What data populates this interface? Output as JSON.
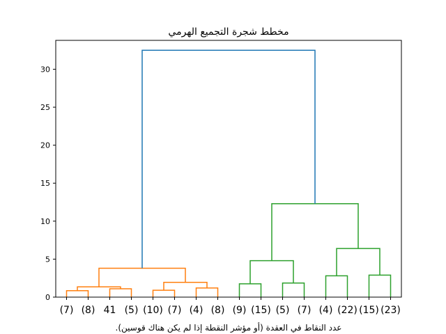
{
  "chart_data": {
    "type": "dendrogram",
    "title": "مخطط شجرة التجميع الهرمي",
    "xlabel": "عدد النقاط في العقدة (أو مؤشر النقطة إذا لم يكن هناك قوسين).",
    "ylabel": "",
    "ylim": [
      0,
      33.8
    ],
    "yticks": [
      0,
      5,
      10,
      15,
      20,
      25,
      30
    ],
    "grid": false,
    "leaf_labels": [
      "(7)",
      "(8)",
      "41",
      "(5)",
      "(10)",
      "(7)",
      "(4)",
      "(8)",
      "(9)",
      "(15)",
      "(5)",
      "(7)",
      "(4)",
      "(22)",
      "(15)",
      "(23)"
    ],
    "colors": {
      "cluster_1": "#ff7f0e",
      "cluster_2": "#2ca02c",
      "root": "#1f77b4"
    },
    "links": [
      {
        "left": 0,
        "right": 1,
        "height": 0.85,
        "color": "cluster_1"
      },
      {
        "left": 2,
        "right": 3,
        "height": 1.1,
        "color": "cluster_1"
      },
      {
        "left": 16,
        "right": 17,
        "height": 1.35,
        "color": "cluster_1"
      },
      {
        "left": 4,
        "right": 5,
        "height": 0.9,
        "color": "cluster_1"
      },
      {
        "left": 6,
        "right": 7,
        "height": 1.2,
        "color": "cluster_1"
      },
      {
        "left": 19,
        "right": 20,
        "height": 1.95,
        "color": "cluster_1"
      },
      {
        "left": 18,
        "right": 21,
        "height": 3.8,
        "color": "cluster_1"
      },
      {
        "left": 8,
        "right": 9,
        "height": 1.75,
        "color": "cluster_2"
      },
      {
        "left": 10,
        "right": 11,
        "height": 1.85,
        "color": "cluster_2"
      },
      {
        "left": 23,
        "right": 24,
        "height": 4.8,
        "color": "cluster_2"
      },
      {
        "left": 12,
        "right": 13,
        "height": 2.8,
        "color": "cluster_2"
      },
      {
        "left": 14,
        "right": 15,
        "height": 2.9,
        "color": "cluster_2"
      },
      {
        "left": 26,
        "right": 27,
        "height": 6.4,
        "color": "cluster_2"
      },
      {
        "left": 25,
        "right": 28,
        "height": 12.3,
        "color": "cluster_2"
      },
      {
        "left": 22,
        "right": 29,
        "height": 32.5,
        "color": "root"
      }
    ]
  }
}
